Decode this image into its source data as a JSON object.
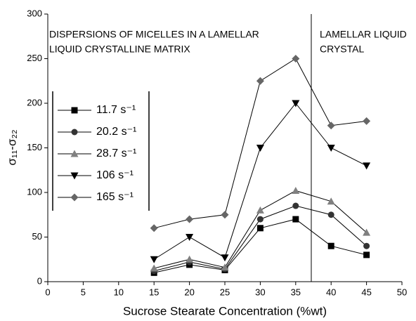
{
  "chart_data": {
    "type": "line",
    "x_label": "Sucrose Stearate Concentration (%wt)",
    "y_label": "σ₁₁-σ₂₂",
    "x": [
      15,
      20,
      25,
      30,
      35,
      40,
      45
    ],
    "series": [
      {
        "name": "11.7 s⁻¹",
        "color": "#000000",
        "marker": "square",
        "values": [
          10,
          19,
          13,
          60,
          70,
          40,
          30
        ]
      },
      {
        "name": "20.2 s⁻¹",
        "color": "#333333",
        "marker": "circle",
        "values": [
          12,
          22,
          14,
          70,
          85,
          75,
          40
        ]
      },
      {
        "name": "28.7 s⁻¹",
        "color": "#808080",
        "marker": "triangle-up",
        "values": [
          15,
          25,
          16,
          80,
          102,
          90,
          55
        ]
      },
      {
        "name": "106 s⁻¹",
        "color": "#000000",
        "marker": "triangle-down",
        "values": [
          25,
          50,
          27,
          150,
          200,
          150,
          130
        ]
      },
      {
        "name": "165 s⁻¹",
        "color": "#666666",
        "marker": "diamond",
        "values": [
          60,
          70,
          75,
          225,
          250,
          175,
          180
        ]
      }
    ],
    "xlim": [
      0,
      50
    ],
    "xticks": [
      0,
      5,
      10,
      15,
      20,
      25,
      30,
      35,
      40,
      45,
      50
    ],
    "ylim": [
      0,
      300
    ],
    "yticks": [
      0,
      50,
      100,
      150,
      200,
      250,
      300
    ],
    "vline_x": 37.2,
    "annotations": [
      {
        "lines": [
          "DISPERSIONS OF MICELLES IN A LAMELLAR",
          "LIQUID CRYSTALLINE MATRIX"
        ]
      },
      {
        "lines": [
          "LAMELLAR LIQUID",
          "CRYSTAL"
        ]
      }
    ]
  }
}
